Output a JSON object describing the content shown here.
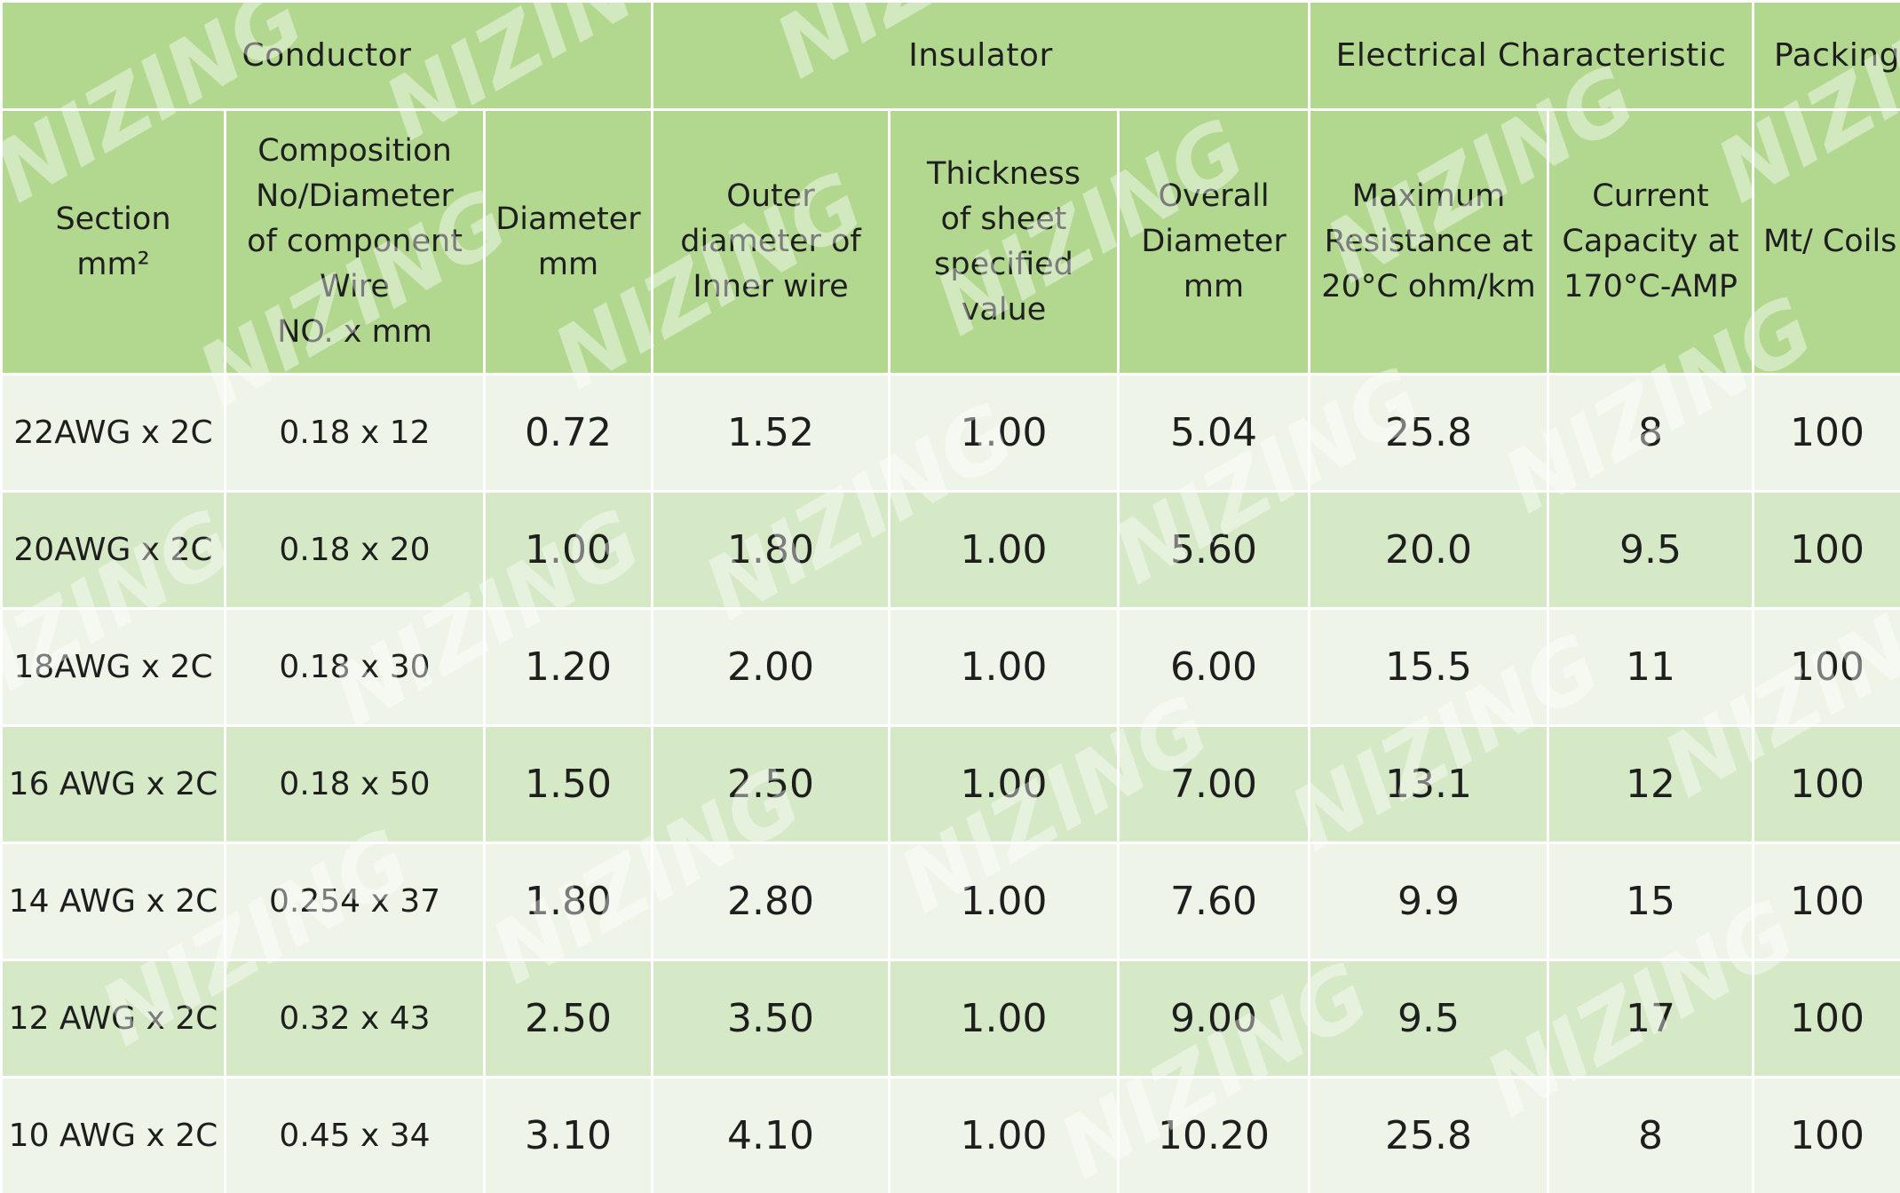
{
  "table": {
    "groups": {
      "conductor": "Conductor",
      "insulator": "Insulator",
      "electrical": "Electrical Characteristic",
      "packing": "Packing"
    },
    "headers": {
      "section": [
        "Section",
        "mm²"
      ],
      "composition": [
        "Composition",
        "No/Diameter",
        "of component",
        "Wire",
        "NO. x mm"
      ],
      "diameter": [
        "Diameter",
        "mm"
      ],
      "outer_diameter": [
        "Outer",
        "diameter of",
        "Inner wire"
      ],
      "thickness": [
        "Thickness",
        "of sheet",
        "specified",
        "value"
      ],
      "overall_diameter": [
        "Overall",
        "Diameter",
        "mm"
      ],
      "max_resistance": [
        "Maximum",
        "Resistance at",
        "20°C ohm/km"
      ],
      "current_capacity": [
        "Current",
        "Capacity at",
        "170°C-AMP"
      ],
      "mt_coils": "Mt/ Coils"
    },
    "rows": [
      [
        "22AWG x 2C",
        "0.18 x 12",
        "0.72",
        "1.52",
        "1.00",
        "5.04",
        "25.8",
        "8",
        "100"
      ],
      [
        "20AWG x 2C",
        "0.18 x 20",
        "1.00",
        "1.80",
        "1.00",
        "5.60",
        "20.0",
        "9.5",
        "100"
      ],
      [
        "18AWG x 2C",
        "0.18 x 30",
        "1.20",
        "2.00",
        "1.00",
        "6.00",
        "15.5",
        "11",
        "100"
      ],
      [
        "16 AWG x 2C",
        "0.18 x 50",
        "1.50",
        "2.50",
        "1.00",
        "7.00",
        "13.1",
        "12",
        "100"
      ],
      [
        "14 AWG x 2C",
        "0.254 x 37",
        "1.80",
        "2.80",
        "1.00",
        "7.60",
        "9.9",
        "15",
        "100"
      ],
      [
        "12 AWG x 2C",
        "0.32 x 43",
        "2.50",
        "3.50",
        "1.00",
        "9.00",
        "9.5",
        "17",
        "100"
      ],
      [
        "10 AWG x 2C",
        "0.45 x 34",
        "3.10",
        "4.10",
        "1.00",
        "10.20",
        "25.8",
        "8",
        "100"
      ]
    ]
  },
  "watermark": {
    "text": "NIZING",
    "color": "#ffffff"
  },
  "colors": {
    "header_green": "#b2d78f",
    "row_light": "#eef5e8",
    "row_dark": "#d6e9c6"
  }
}
